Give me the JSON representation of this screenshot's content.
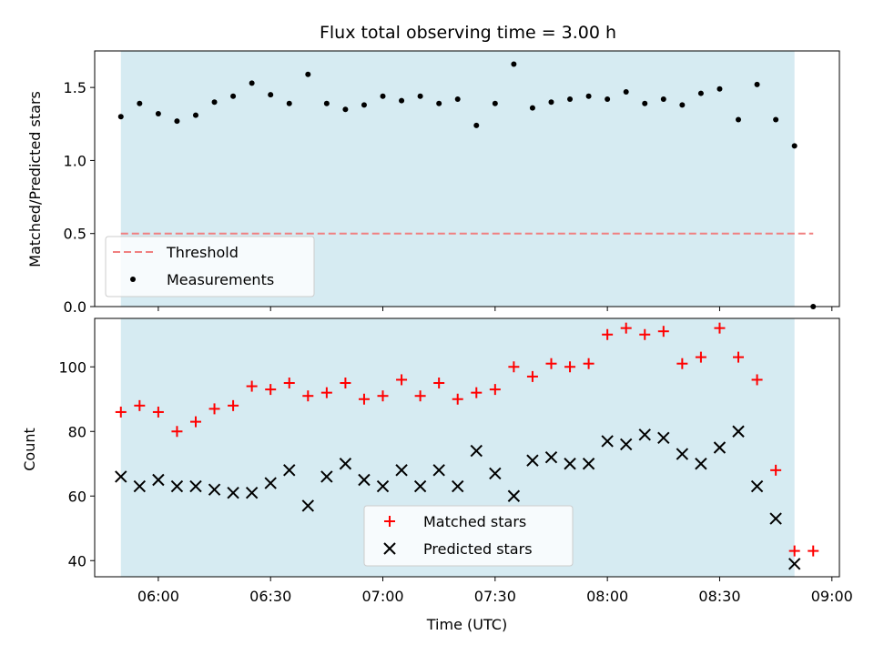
{
  "chart_data": [
    {
      "type": "scatter",
      "title": "Flux total observing time = 3.00 h",
      "ylabel": "Matched/Predicted stars",
      "xlabel": "",
      "xlim": [
        "05:43",
        "09:02"
      ],
      "ylim": [
        0,
        1.75
      ],
      "yticks": [
        0.0,
        0.5,
        1.0,
        1.5
      ],
      "ytick_labels": [
        "0.0",
        "0.5",
        "1.0",
        "1.5"
      ],
      "shaded_span": [
        "05:50",
        "08:50"
      ],
      "shade_color": "#add8e6",
      "threshold": {
        "name": "Threshold",
        "value": 0.5,
        "x_range": [
          "05:50",
          "08:55"
        ],
        "color": "#f08080"
      },
      "series": [
        {
          "name": "Measurements",
          "color": "#000000",
          "x": [
            "05:50",
            "05:55",
            "06:00",
            "06:05",
            "06:10",
            "06:15",
            "06:20",
            "06:25",
            "06:30",
            "06:35",
            "06:40",
            "06:45",
            "06:50",
            "06:55",
            "07:00",
            "07:05",
            "07:10",
            "07:15",
            "07:20",
            "07:25",
            "07:30",
            "07:35",
            "07:40",
            "07:45",
            "07:50",
            "07:55",
            "08:00",
            "08:05",
            "08:10",
            "08:15",
            "08:20",
            "08:25",
            "08:30",
            "08:35",
            "08:40",
            "08:45",
            "08:50",
            "08:55"
          ],
          "y": [
            1.3,
            1.39,
            1.32,
            1.27,
            1.31,
            1.4,
            1.44,
            1.53,
            1.45,
            1.39,
            1.59,
            1.39,
            1.35,
            1.38,
            1.44,
            1.41,
            1.44,
            1.39,
            1.42,
            1.24,
            1.39,
            1.66,
            1.36,
            1.4,
            1.42,
            1.44,
            1.42,
            1.47,
            1.39,
            1.42,
            1.38,
            1.46,
            1.49,
            1.28,
            1.52,
            1.28,
            1.1,
            0.0
          ]
        }
      ],
      "legend": {
        "position": "lower-left",
        "entries": [
          "Threshold",
          "Measurements"
        ]
      }
    },
    {
      "type": "scatter",
      "title": "",
      "ylabel": "Count",
      "xlabel": "Time (UTC)",
      "xlim": [
        "05:43",
        "09:02"
      ],
      "ylim": [
        35,
        115
      ],
      "yticks": [
        40,
        60,
        80,
        100
      ],
      "ytick_labels": [
        "40",
        "60",
        "80",
        "100"
      ],
      "xticks": [
        "06:00",
        "06:30",
        "07:00",
        "07:30",
        "08:00",
        "08:30",
        "09:00"
      ],
      "xtick_labels": [
        "06:00",
        "06:30",
        "07:00",
        "07:30",
        "08:00",
        "08:30",
        "09:00"
      ],
      "shaded_span": [
        "05:50",
        "08:50"
      ],
      "shade_color": "#add8e6",
      "series": [
        {
          "name": "Matched stars",
          "marker": "plus",
          "color": "#ff0000",
          "x": [
            "05:50",
            "05:55",
            "06:00",
            "06:05",
            "06:10",
            "06:15",
            "06:20",
            "06:25",
            "06:30",
            "06:35",
            "06:40",
            "06:45",
            "06:50",
            "06:55",
            "07:00",
            "07:05",
            "07:10",
            "07:15",
            "07:20",
            "07:25",
            "07:30",
            "07:35",
            "07:40",
            "07:45",
            "07:50",
            "07:55",
            "08:00",
            "08:05",
            "08:10",
            "08:15",
            "08:20",
            "08:25",
            "08:30",
            "08:35",
            "08:40",
            "08:45",
            "08:50",
            "08:55"
          ],
          "y": [
            86,
            88,
            86,
            80,
            83,
            87,
            88,
            94,
            93,
            95,
            91,
            92,
            95,
            90,
            91,
            96,
            91,
            95,
            90,
            92,
            93,
            100,
            97,
            101,
            100,
            101,
            110,
            112,
            110,
            111,
            101,
            103,
            112,
            103,
            96,
            68,
            43,
            43
          ]
        },
        {
          "name": "Predicted stars",
          "marker": "x",
          "color": "#000000",
          "x": [
            "05:50",
            "05:55",
            "06:00",
            "06:05",
            "06:10",
            "06:15",
            "06:20",
            "06:25",
            "06:30",
            "06:35",
            "06:40",
            "06:45",
            "06:50",
            "06:55",
            "07:00",
            "07:05",
            "07:10",
            "07:15",
            "07:20",
            "07:25",
            "07:30",
            "07:35",
            "07:40",
            "07:45",
            "07:50",
            "07:55",
            "08:00",
            "08:05",
            "08:10",
            "08:15",
            "08:20",
            "08:25",
            "08:30",
            "08:35",
            "08:40",
            "08:45",
            "08:50"
          ],
          "y": [
            66,
            63,
            65,
            63,
            63,
            62,
            61,
            61,
            64,
            68,
            57,
            66,
            70,
            65,
            63,
            68,
            63,
            68,
            63,
            74,
            67,
            60,
            71,
            72,
            70,
            70,
            77,
            76,
            79,
            78,
            73,
            70,
            75,
            80,
            63,
            53,
            39
          ]
        }
      ],
      "legend": {
        "position": "lower-center",
        "entries": [
          "Matched stars",
          "Predicted stars"
        ]
      }
    }
  ]
}
